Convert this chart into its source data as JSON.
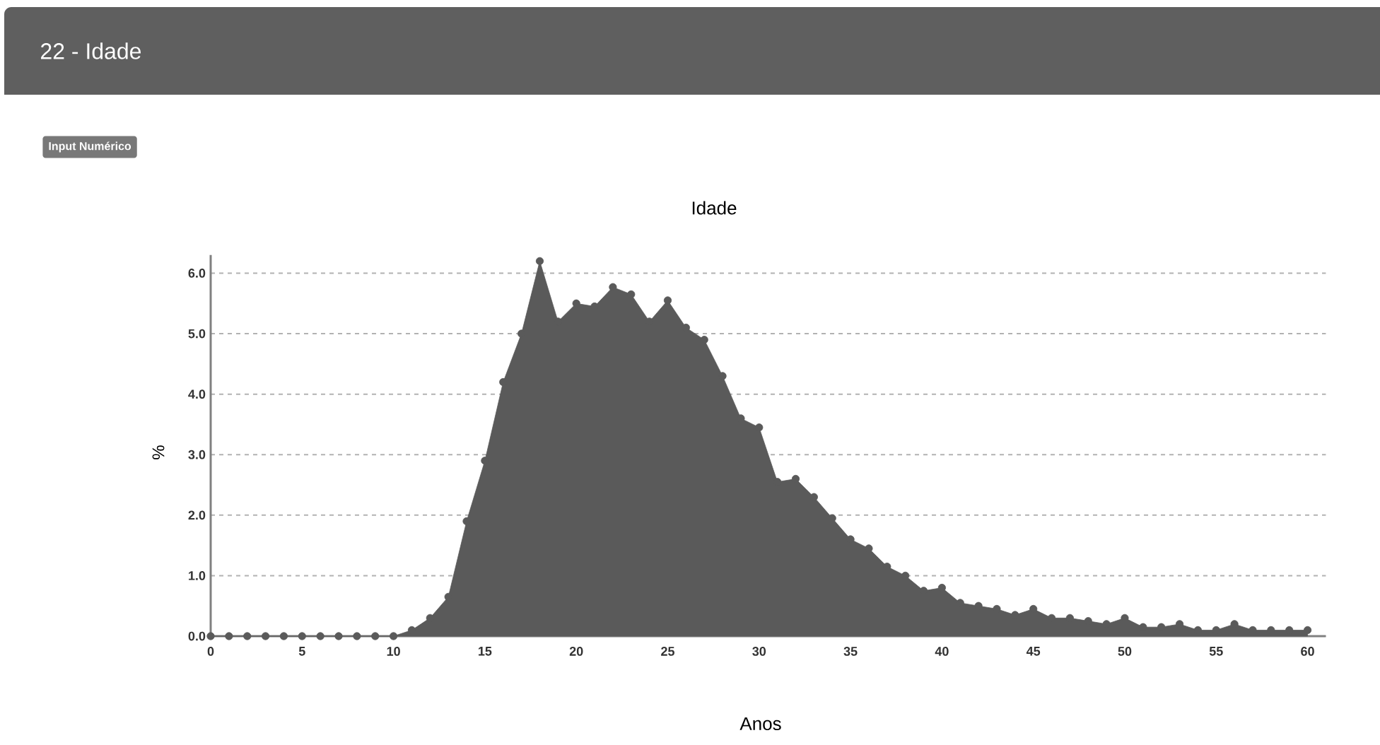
{
  "chart_data": {
    "type": "area",
    "title": "22 - Idade",
    "subtitle": "Idade",
    "annotations": [
      "Input Numérico"
    ],
    "xlabel": "Anos",
    "ylabel": "%",
    "x": [
      0,
      1,
      2,
      3,
      4,
      5,
      6,
      7,
      8,
      9,
      10,
      11,
      12,
      13,
      14,
      15,
      16,
      17,
      18,
      19,
      20,
      21,
      22,
      23,
      24,
      25,
      26,
      27,
      28,
      29,
      30,
      31,
      32,
      33,
      34,
      35,
      36,
      37,
      38,
      39,
      40,
      41,
      42,
      43,
      44,
      45,
      46,
      47,
      48,
      49,
      50,
      51,
      52,
      53,
      54,
      55,
      56,
      57,
      58,
      59,
      60
    ],
    "series": [
      {
        "color": "#5a5a5a",
        "values": [
          0,
          0,
          0,
          0,
          0,
          0,
          0,
          0,
          0,
          0,
          0,
          0.1,
          0.3,
          0.65,
          1.9,
          2.9,
          4.2,
          5.0,
          6.2,
          5.2,
          5.5,
          5.45,
          5.77,
          5.65,
          5.2,
          5.55,
          5.1,
          4.9,
          4.3,
          3.6,
          3.45,
          2.55,
          2.6,
          2.3,
          1.95,
          1.6,
          1.45,
          1.15,
          1.0,
          0.75,
          0.8,
          0.55,
          0.5,
          0.45,
          0.35,
          0.45,
          0.3,
          0.3,
          0.25,
          0.2,
          0.3,
          0.15,
          0.15,
          0.2,
          0.1,
          0.1,
          0.2,
          0.1,
          0.1,
          0.1,
          0.1
        ]
      }
    ],
    "xlim": [
      0,
      61
    ],
    "ylim": [
      0,
      6.3
    ],
    "xticks": [
      0,
      5,
      10,
      15,
      20,
      25,
      30,
      35,
      40,
      45,
      50,
      55,
      60
    ],
    "yticks": [
      {
        "value": 0,
        "label": "0.0"
      },
      {
        "value": 1,
        "label": "1.0"
      },
      {
        "value": 2,
        "label": "2.0"
      },
      {
        "value": 3,
        "label": "3.0"
      },
      {
        "value": 4,
        "label": "4.0"
      },
      {
        "value": 5,
        "label": "5.0"
      },
      {
        "value": 6,
        "label": "6.0"
      }
    ],
    "grid": "y",
    "marker": "circle",
    "line_style": "solid"
  }
}
